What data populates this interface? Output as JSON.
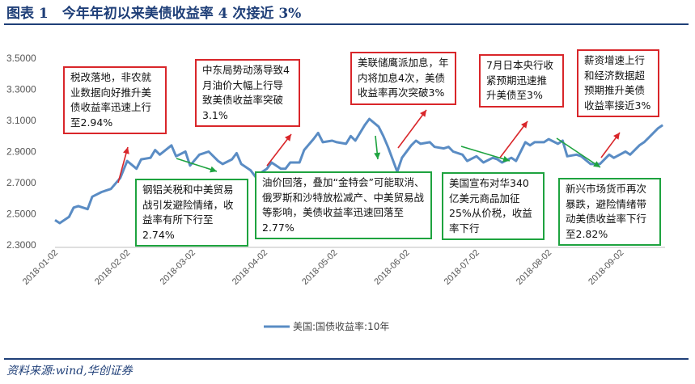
{
  "title": "图表 1　今年年初以来美债收益率 4 次接近 3%",
  "source": "资料来源:wind,华创证券",
  "colors": {
    "series": "#5a8cc4",
    "red": "#d9262a",
    "green": "#1ea33f",
    "navy": "#1f3f78"
  },
  "annotations": {
    "r1": "税改落地，非农就业数据向好推升美债收益率迅速上行至2.94%",
    "r2": "中东局势动荡导致4月油价大幅上行导致美债收益率突破3.1%",
    "r3": "美联储鹰派加息，年内将加息4次，美债收益率再次突破3%",
    "r4": "7月日本央行收紧预期迅速推升美债至3%",
    "r5": "薪资增速上行和经济数据超预期推升美债收益率接近3%",
    "g1": "钢铝关税和中美贸易战引发避险情绪，收益率有所下行至2.74%",
    "g2": "油价回落，叠加“金特会”可能取消、俄罗斯和沙特放松减产、中美贸易战等影响，美债收益率迅速回落至2.77%",
    "g3": "美国宣布对华340亿美元商品加征25%从价税，收益率下行",
    "g4": "新兴市场货币再次暴跌，避险情绪带动美债收益率下行至2.82%"
  },
  "chart_data": {
    "type": "line",
    "title": "",
    "xlabel": "",
    "ylabel": "",
    "ylim": [
      2.3,
      3.5
    ],
    "yticks": [
      "2.3000",
      "2.5000",
      "2.7000",
      "2.9000",
      "3.1000",
      "3.3000",
      "3.5000"
    ],
    "xticks": [
      "2018-01-02",
      "2018-02-02",
      "2018-03-02",
      "2018-04-02",
      "2018-05-02",
      "2018-06-02",
      "2018-07-02",
      "2018-08-02",
      "2018-09-02"
    ],
    "xlim": [
      "2018-01-02",
      "2018-09-21"
    ],
    "grid": false,
    "legend": "bottom",
    "series": [
      {
        "name": "美国:国债收益率:10年",
        "x": [
          "2018-01-02",
          "2018-01-04",
          "2018-01-08",
          "2018-01-10",
          "2018-01-12",
          "2018-01-16",
          "2018-01-18",
          "2018-01-22",
          "2018-01-24",
          "2018-01-26",
          "2018-01-30",
          "2018-02-02",
          "2018-02-06",
          "2018-02-08",
          "2018-02-12",
          "2018-02-14",
          "2018-02-16",
          "2018-02-21",
          "2018-02-23",
          "2018-02-27",
          "2018-03-01",
          "2018-03-05",
          "2018-03-07",
          "2018-03-09",
          "2018-03-13",
          "2018-03-15",
          "2018-03-19",
          "2018-03-21",
          "2018-03-23",
          "2018-03-27",
          "2018-03-29",
          "2018-04-03",
          "2018-04-05",
          "2018-04-09",
          "2018-04-11",
          "2018-04-13",
          "2018-04-17",
          "2018-04-19",
          "2018-04-23",
          "2018-04-25",
          "2018-04-27",
          "2018-05-01",
          "2018-05-03",
          "2018-05-07",
          "2018-05-09",
          "2018-05-11",
          "2018-05-15",
          "2018-05-17",
          "2018-05-21",
          "2018-05-23",
          "2018-05-25",
          "2018-05-29",
          "2018-05-31",
          "2018-06-04",
          "2018-06-06",
          "2018-06-08",
          "2018-06-12",
          "2018-06-14",
          "2018-06-18",
          "2018-06-20",
          "2018-06-22",
          "2018-06-26",
          "2018-06-28",
          "2018-07-02",
          "2018-07-05",
          "2018-07-09",
          "2018-07-11",
          "2018-07-13",
          "2018-07-17",
          "2018-07-19",
          "2018-07-23",
          "2018-07-25",
          "2018-07-27",
          "2018-07-31",
          "2018-08-02",
          "2018-08-06",
          "2018-08-08",
          "2018-08-10",
          "2018-08-14",
          "2018-08-16",
          "2018-08-20",
          "2018-08-22",
          "2018-08-24",
          "2018-08-28",
          "2018-08-30",
          "2018-09-04",
          "2018-09-06",
          "2018-09-10",
          "2018-09-12",
          "2018-09-14",
          "2018-09-18",
          "2018-09-20"
        ],
        "values": [
          2.46,
          2.44,
          2.48,
          2.54,
          2.55,
          2.53,
          2.61,
          2.64,
          2.65,
          2.66,
          2.73,
          2.84,
          2.79,
          2.85,
          2.86,
          2.91,
          2.88,
          2.94,
          2.87,
          2.9,
          2.81,
          2.88,
          2.89,
          2.9,
          2.84,
          2.82,
          2.85,
          2.89,
          2.82,
          2.78,
          2.74,
          2.79,
          2.83,
          2.79,
          2.79,
          2.83,
          2.83,
          2.91,
          2.98,
          3.02,
          2.96,
          2.97,
          2.96,
          2.95,
          3.0,
          2.97,
          3.07,
          3.11,
          3.06,
          3.0,
          2.93,
          2.77,
          2.86,
          2.94,
          2.97,
          2.95,
          2.96,
          2.93,
          2.92,
          2.93,
          2.9,
          2.88,
          2.84,
          2.87,
          2.83,
          2.86,
          2.85,
          2.83,
          2.86,
          2.84,
          2.96,
          2.94,
          2.96,
          2.96,
          2.98,
          2.95,
          2.97,
          2.87,
          2.88,
          2.87,
          2.82,
          2.82,
          2.82,
          2.88,
          2.86,
          2.9,
          2.88,
          2.94,
          2.96,
          2.99,
          3.05,
          3.07
        ]
      }
    ]
  }
}
